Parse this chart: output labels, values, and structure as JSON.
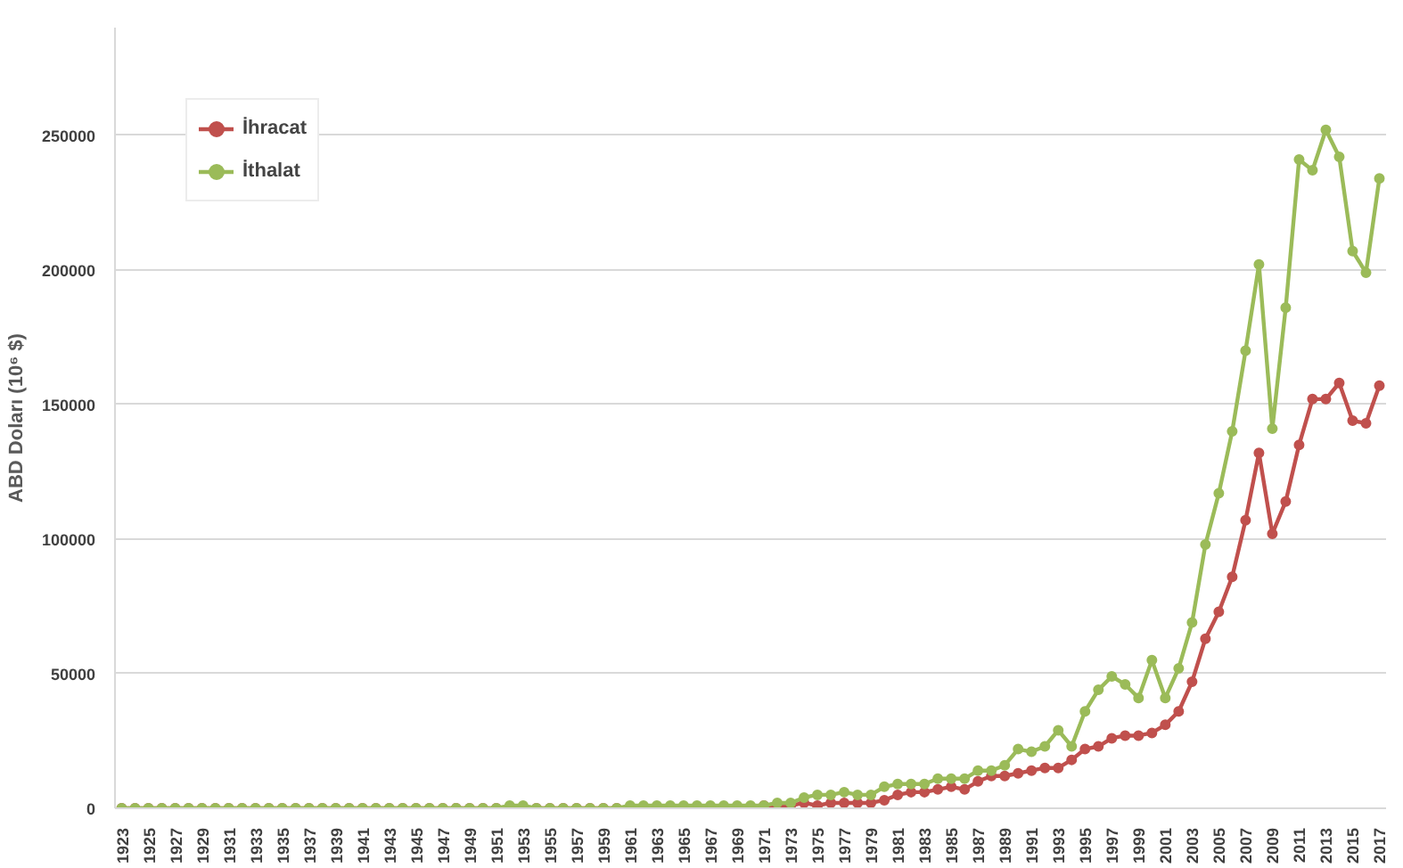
{
  "chart_data": {
    "type": "line",
    "ylabel": "ABD Doları (10⁶ $)",
    "x": [
      1923,
      1924,
      1925,
      1926,
      1927,
      1928,
      1929,
      1930,
      1931,
      1932,
      1933,
      1934,
      1935,
      1936,
      1937,
      1938,
      1939,
      1940,
      1941,
      1942,
      1943,
      1944,
      1945,
      1946,
      1947,
      1948,
      1949,
      1950,
      1951,
      1952,
      1953,
      1954,
      1955,
      1956,
      1957,
      1958,
      1959,
      1960,
      1961,
      1962,
      1963,
      1964,
      1965,
      1966,
      1967,
      1968,
      1969,
      1970,
      1971,
      1972,
      1973,
      1974,
      1975,
      1976,
      1977,
      1978,
      1979,
      1980,
      1981,
      1982,
      1983,
      1984,
      1985,
      1986,
      1987,
      1988,
      1989,
      1990,
      1991,
      1992,
      1993,
      1994,
      1995,
      1996,
      1997,
      1998,
      1999,
      2000,
      2001,
      2002,
      2003,
      2004,
      2005,
      2006,
      2007,
      2008,
      2009,
      2010,
      2011,
      2012,
      2013,
      2014,
      2015,
      2016,
      2017
    ],
    "series": [
      {
        "name": "İhracat",
        "color": "#c0504d",
        "values": [
          0,
          0,
          0,
          0,
          0,
          0,
          0,
          0,
          0,
          0,
          0,
          0,
          0,
          0,
          0,
          0,
          0,
          0,
          0,
          0,
          0,
          0,
          0,
          0,
          0,
          0,
          0,
          0,
          0,
          0,
          0,
          0,
          0,
          0,
          0,
          0,
          0,
          0,
          0,
          0,
          0,
          0,
          0,
          0,
          null,
          0,
          null,
          null,
          1000,
          1000,
          1000,
          2000,
          1000,
          2000,
          2000,
          2000,
          2000,
          3000,
          5000,
          6000,
          6000,
          7000,
          8000,
          7000,
          10000,
          12000,
          12000,
          13000,
          14000,
          15000,
          15000,
          18000,
          22000,
          23000,
          26000,
          27000,
          27000,
          28000,
          31000,
          36000,
          47000,
          63000,
          73000,
          86000,
          107000,
          132000,
          102000,
          114000,
          135000,
          152000,
          152000,
          158000,
          144000,
          143000,
          157000
        ]
      },
      {
        "name": "İthalat",
        "color": "#9bbb59",
        "values": [
          0,
          0,
          0,
          0,
          0,
          0,
          0,
          0,
          0,
          0,
          0,
          0,
          0,
          0,
          0,
          0,
          0,
          0,
          0,
          0,
          0,
          0,
          0,
          0,
          0,
          0,
          0,
          0,
          0,
          1000,
          1000,
          0,
          0,
          0,
          0,
          0,
          0,
          0,
          1000,
          1000,
          1000,
          1000,
          1000,
          1000,
          1000,
          1000,
          1000,
          1000,
          1000,
          2000,
          2000,
          4000,
          5000,
          5000,
          6000,
          5000,
          5000,
          8000,
          9000,
          9000,
          9000,
          11000,
          11000,
          11000,
          14000,
          14000,
          16000,
          22000,
          21000,
          23000,
          29000,
          23000,
          36000,
          44000,
          49000,
          46000,
          41000,
          55000,
          41000,
          52000,
          69000,
          98000,
          117000,
          140000,
          170000,
          202000,
          141000,
          186000,
          241000,
          237000,
          252000,
          242000,
          207000,
          199000,
          234000
        ]
      }
    ],
    "xlim": [
      1922.5,
      2017.5
    ],
    "xticks": [
      1923,
      1925,
      1927,
      1929,
      1931,
      1933,
      1935,
      1937,
      1939,
      1941,
      1943,
      1945,
      1947,
      1949,
      1951,
      1953,
      1955,
      1957,
      1959,
      1961,
      1963,
      1965,
      1967,
      1969,
      1971,
      1973,
      1975,
      1977,
      1979,
      1981,
      1983,
      1985,
      1987,
      1989,
      1991,
      1993,
      1995,
      1997,
      1999,
      2001,
      2003,
      2005,
      2007,
      2009,
      2011,
      2013,
      2015,
      2017
    ],
    "ylim": [
      0,
      290000
    ],
    "yticks": [
      0,
      50000,
      100000,
      150000,
      200000,
      250000
    ],
    "grid": "y",
    "legend": "top left",
    "marker": "circle",
    "line_style": "solid"
  }
}
